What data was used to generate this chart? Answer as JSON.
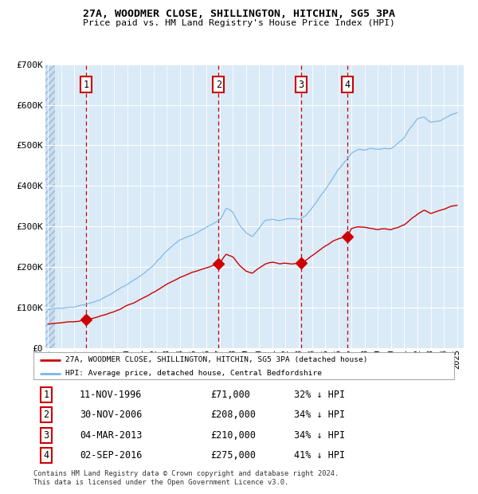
{
  "title_line1": "27A, WOODMER CLOSE, SHILLINGTON, HITCHIN, SG5 3PA",
  "title_line2": "Price paid vs. HM Land Registry's House Price Index (HPI)",
  "legend_red": "27A, WOODMER CLOSE, SHILLINGTON, HITCHIN, SG5 3PA (detached house)",
  "legend_blue": "HPI: Average price, detached house, Central Bedfordshire",
  "footer1": "Contains HM Land Registry data © Crown copyright and database right 2024.",
  "footer2": "This data is licensed under the Open Government Licence v3.0.",
  "xlim_start": 1993.8,
  "xlim_end": 2025.5,
  "ylim_min": 0,
  "ylim_max": 700000,
  "yticks": [
    0,
    100000,
    200000,
    300000,
    400000,
    500000,
    600000,
    700000
  ],
  "ytick_labels": [
    "£0",
    "£100K",
    "£200K",
    "£300K",
    "£400K",
    "£500K",
    "£600K",
    "£700K"
  ],
  "sale_points": [
    {
      "num": 1,
      "year": 1996.87,
      "price_paid": 71000,
      "date": "11-NOV-1996",
      "price_str": "£71,000",
      "pct": "32% ↓ HPI"
    },
    {
      "num": 2,
      "year": 2006.92,
      "price_paid": 208000,
      "date": "30-NOV-2006",
      "price_str": "£208,000",
      "pct": "34% ↓ HPI"
    },
    {
      "num": 3,
      "year": 2013.17,
      "price_paid": 210000,
      "date": "04-MAR-2013",
      "price_str": "£210,000",
      "pct": "34% ↓ HPI"
    },
    {
      "num": 4,
      "year": 2016.67,
      "price_paid": 275000,
      "date": "02-SEP-2016",
      "price_str": "£275,000",
      "pct": "41% ↓ HPI"
    }
  ],
  "bg_color": "#daeaf7",
  "red_line_color": "#cc0000",
  "blue_line_color": "#7ab8e8",
  "grid_color": "#ffffff",
  "vline_color": "#cc0000",
  "sale_box_color": "#cc0000",
  "hpi_keypoints": [
    [
      1994.0,
      95000
    ],
    [
      1995.0,
      100000
    ],
    [
      1996.0,
      102000
    ],
    [
      1997.0,
      110000
    ],
    [
      1998.0,
      120000
    ],
    [
      1999.0,
      138000
    ],
    [
      2000.0,
      158000
    ],
    [
      2001.0,
      178000
    ],
    [
      2002.0,
      205000
    ],
    [
      2003.0,
      240000
    ],
    [
      2004.0,
      268000
    ],
    [
      2005.0,
      280000
    ],
    [
      2006.0,
      298000
    ],
    [
      2007.0,
      315000
    ],
    [
      2007.5,
      345000
    ],
    [
      2008.0,
      335000
    ],
    [
      2008.5,
      305000
    ],
    [
      2009.0,
      285000
    ],
    [
      2009.5,
      275000
    ],
    [
      2010.0,
      295000
    ],
    [
      2010.5,
      315000
    ],
    [
      2011.0,
      318000
    ],
    [
      2011.5,
      315000
    ],
    [
      2012.0,
      318000
    ],
    [
      2012.5,
      320000
    ],
    [
      2013.0,
      318000
    ],
    [
      2013.5,
      325000
    ],
    [
      2014.0,
      345000
    ],
    [
      2014.5,
      370000
    ],
    [
      2015.0,
      390000
    ],
    [
      2015.5,
      415000
    ],
    [
      2016.0,
      440000
    ],
    [
      2016.5,
      460000
    ],
    [
      2017.0,
      480000
    ],
    [
      2017.5,
      490000
    ],
    [
      2018.0,
      488000
    ],
    [
      2018.5,
      492000
    ],
    [
      2019.0,
      490000
    ],
    [
      2019.5,
      492000
    ],
    [
      2020.0,
      492000
    ],
    [
      2020.5,
      505000
    ],
    [
      2021.0,
      520000
    ],
    [
      2021.5,
      545000
    ],
    [
      2022.0,
      565000
    ],
    [
      2022.5,
      570000
    ],
    [
      2023.0,
      555000
    ],
    [
      2023.5,
      560000
    ],
    [
      2024.0,
      565000
    ],
    [
      2024.5,
      575000
    ],
    [
      2025.0,
      580000
    ]
  ],
  "red_keypoints": [
    [
      1994.0,
      60000
    ],
    [
      1995.0,
      63000
    ],
    [
      1996.0,
      65000
    ],
    [
      1996.87,
      71000
    ],
    [
      1997.5,
      75000
    ],
    [
      1998.0,
      80000
    ],
    [
      1999.0,
      90000
    ],
    [
      2000.0,
      105000
    ],
    [
      2001.0,
      120000
    ],
    [
      2002.0,
      138000
    ],
    [
      2003.0,
      158000
    ],
    [
      2004.0,
      175000
    ],
    [
      2005.0,
      188000
    ],
    [
      2006.0,
      198000
    ],
    [
      2006.92,
      208000
    ],
    [
      2007.0,
      210000
    ],
    [
      2007.5,
      232000
    ],
    [
      2008.0,
      225000
    ],
    [
      2008.5,
      205000
    ],
    [
      2009.0,
      190000
    ],
    [
      2009.5,
      185000
    ],
    [
      2010.0,
      198000
    ],
    [
      2010.5,
      208000
    ],
    [
      2011.0,
      212000
    ],
    [
      2011.5,
      208000
    ],
    [
      2012.0,
      210000
    ],
    [
      2012.5,
      208000
    ],
    [
      2013.0,
      210000
    ],
    [
      2013.17,
      210000
    ],
    [
      2013.5,
      215000
    ],
    [
      2014.0,
      228000
    ],
    [
      2014.5,
      240000
    ],
    [
      2015.0,
      252000
    ],
    [
      2015.5,
      262000
    ],
    [
      2016.0,
      270000
    ],
    [
      2016.67,
      275000
    ],
    [
      2017.0,
      295000
    ],
    [
      2017.5,
      300000
    ],
    [
      2018.0,
      298000
    ],
    [
      2018.5,
      295000
    ],
    [
      2019.0,
      293000
    ],
    [
      2019.5,
      295000
    ],
    [
      2020.0,
      292000
    ],
    [
      2020.5,
      298000
    ],
    [
      2021.0,
      305000
    ],
    [
      2021.5,
      318000
    ],
    [
      2022.0,
      330000
    ],
    [
      2022.5,
      340000
    ],
    [
      2023.0,
      332000
    ],
    [
      2023.5,
      338000
    ],
    [
      2024.0,
      342000
    ],
    [
      2024.5,
      350000
    ],
    [
      2025.0,
      352000
    ]
  ]
}
